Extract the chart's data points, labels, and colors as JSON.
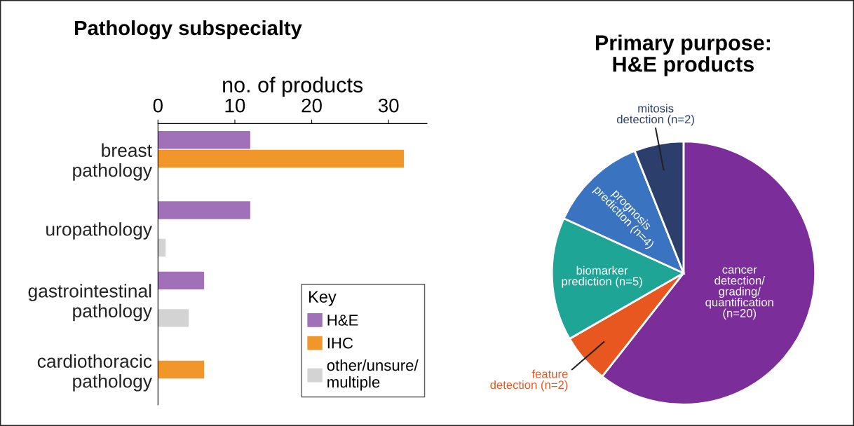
{
  "chart_data": [
    {
      "type": "bar",
      "title": "Pathology subspecialty",
      "xlabel": "no. of products",
      "orientation": "horizontal",
      "categories": [
        "breast\npathology",
        "uropathology",
        "gastrointestinal\npathology",
        "cardiothoracic\npathology"
      ],
      "series": [
        {
          "name": "H&E",
          "color": "#a070b8",
          "values": [
            12,
            12,
            6,
            null
          ]
        },
        {
          "name": "IHC",
          "color": "#f0962a",
          "values": [
            32,
            null,
            null,
            6
          ]
        },
        {
          "name": "other/unsure/\nmultiple",
          "color": "#d3d3d3",
          "values": [
            null,
            1,
            4,
            null
          ]
        }
      ],
      "xlim": [
        0,
        35
      ],
      "xticks": [
        0,
        10,
        20,
        30
      ],
      "legend": "bottom right",
      "legend_title": "Key",
      "grid": false
    },
    {
      "type": "pie",
      "title": "Primary purpose:\nH&E products",
      "categories": [
        "cancer\ndetection/\ngrading/\nquantification",
        "feature\ndetection",
        "biomarker\nprediction",
        "prognosis\nprediction",
        "mitosis\ndetection"
      ],
      "values": [
        20,
        2,
        5,
        4,
        2
      ],
      "value_labels": [
        "(n=20)",
        "(n=2)",
        "(n=5)",
        "(n=4)",
        "(n=2)"
      ],
      "colors": [
        "#7b2d9a",
        "#e8571f",
        "#1fa596",
        "#3a73c0",
        "#2c3e6b"
      ]
    }
  ]
}
